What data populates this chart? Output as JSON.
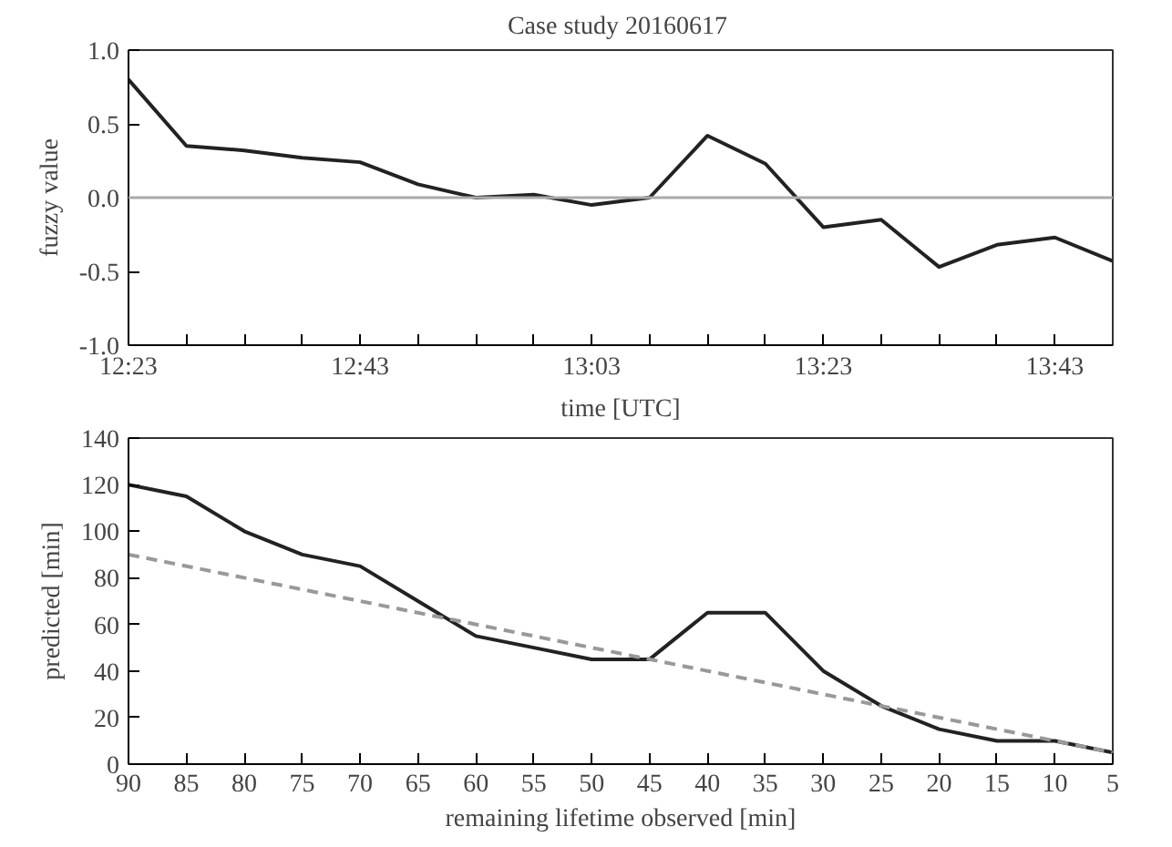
{
  "chart_data": [
    {
      "type": "line",
      "title": "Case study  20160617",
      "xlabel": "time [UTC]",
      "ylabel": "fuzzy value",
      "x": [
        12.3833,
        12.4667,
        12.55,
        12.6333,
        12.7167,
        12.8,
        12.8833,
        12.9667,
        13.05,
        13.1333,
        13.2167,
        13.3,
        13.3833,
        13.4667,
        13.55,
        13.6333,
        13.7167,
        13.8
      ],
      "series": [
        {
          "color": "#222222",
          "values": [
            0.8,
            0.35,
            0.32,
            0.27,
            0.24,
            0.09,
            0.0,
            0.02,
            -0.05,
            0.0,
            0.42,
            0.23,
            -0.2,
            -0.15,
            -0.47,
            -0.32,
            -0.27,
            -0.43
          ]
        }
      ],
      "xlim": [
        12.3833,
        13.8
      ],
      "xticks": [
        {
          "value": 12.3833,
          "label": "12:23"
        },
        {
          "value": 12.4667,
          "label": null
        },
        {
          "value": 12.55,
          "label": null
        },
        {
          "value": 12.6333,
          "label": null
        },
        {
          "value": 12.7167,
          "label": "12:43"
        },
        {
          "value": 12.8,
          "label": null
        },
        {
          "value": 12.8833,
          "label": null
        },
        {
          "value": 12.9667,
          "label": null
        },
        {
          "value": 13.05,
          "label": "13:03"
        },
        {
          "value": 13.1333,
          "label": null
        },
        {
          "value": 13.2167,
          "label": null
        },
        {
          "value": 13.3,
          "label": null
        },
        {
          "value": 13.3833,
          "label": "13:23"
        },
        {
          "value": 13.4667,
          "label": null
        },
        {
          "value": 13.55,
          "label": null
        },
        {
          "value": 13.6333,
          "label": null
        },
        {
          "value": 13.7167,
          "label": "13:43"
        }
      ],
      "ylim": [
        -1.0,
        1.0
      ],
      "yticks": [
        {
          "value": -1.0,
          "label": "-1.0"
        },
        {
          "value": -0.5,
          "label": "-0.5"
        },
        {
          "value": 0.0,
          "label": "0.0"
        },
        {
          "value": 0.5,
          "label": "0.5"
        },
        {
          "value": 1.0,
          "label": "1.0"
        }
      ],
      "ref_lines": [
        {
          "axis": "y",
          "value": 0,
          "color": "#aaaaaa"
        }
      ],
      "grid": false
    },
    {
      "type": "line",
      "xlabel": "remaining lifetime observed [min]",
      "ylabel": "predicted [min]",
      "x": [
        90,
        85,
        80,
        75,
        70,
        65,
        60,
        55,
        50,
        45,
        40,
        35,
        30,
        25,
        20,
        15,
        10,
        5
      ],
      "series": [
        {
          "color": "#222222",
          "line_style": "solid",
          "values": [
            120,
            115,
            100,
            90,
            85,
            70,
            55,
            50,
            45,
            45,
            65,
            65,
            40,
            25,
            15,
            10,
            10,
            5
          ]
        },
        {
          "color": "#999999",
          "line_style": "dashed",
          "x": [
            90,
            5
          ],
          "values": [
            90,
            5
          ]
        }
      ],
      "xlim": [
        90,
        5
      ],
      "xticks": [
        90,
        85,
        80,
        75,
        70,
        65,
        60,
        55,
        50,
        45,
        40,
        35,
        30,
        25,
        20,
        15,
        10,
        5
      ],
      "ylim": [
        0,
        140
      ],
      "yticks": [
        0,
        20,
        40,
        60,
        80,
        100,
        120,
        140
      ],
      "grid": false
    }
  ]
}
